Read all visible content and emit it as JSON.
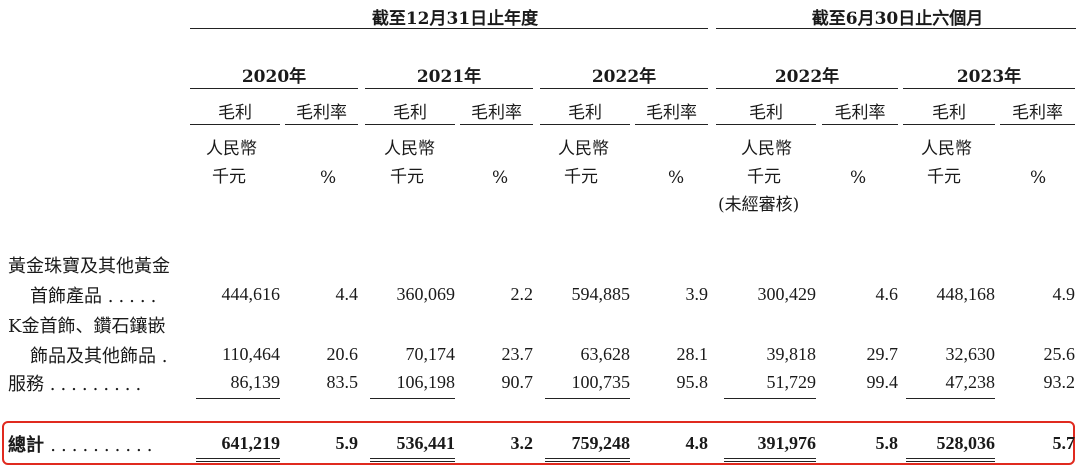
{
  "header": {
    "period_year": "截至12月31日止年度",
    "period_half": "截至6月30日止六個月",
    "years": [
      "2020年",
      "2021年",
      "2022年",
      "2022年",
      "2023年"
    ],
    "col_profit": "毛利",
    "col_margin": "毛利率",
    "unit_rmb": "人民幣",
    "unit_thousand": "千元",
    "unit_pct": "%",
    "unaudited": "(未經審核)"
  },
  "rows": [
    {
      "label_lines": [
        "黃金珠寶及其他黃金",
        "首飾產品"
      ],
      "dots": ".....",
      "values": [
        "444,616",
        "4.4",
        "360,069",
        "2.2",
        "594,885",
        "3.9",
        "300,429",
        "4.6",
        "448,168",
        "4.9"
      ]
    },
    {
      "label_lines": [
        "K金首飾、鑽石鑲嵌",
        "飾品及其他飾品"
      ],
      "dots": ".",
      "values": [
        "110,464",
        "20.6",
        "70,174",
        "23.7",
        "63,628",
        "28.1",
        "39,818",
        "29.7",
        "32,630",
        "25.6"
      ]
    },
    {
      "label_lines": [
        "服務"
      ],
      "dots": ".........",
      "values": [
        "86,139",
        "83.5",
        "106,198",
        "90.7",
        "100,735",
        "95.8",
        "51,729",
        "99.4",
        "47,238",
        "93.2"
      ]
    }
  ],
  "total": {
    "label": "總計",
    "dots": "..........",
    "values": [
      "641,219",
      "5.9",
      "536,441",
      "3.2",
      "759,248",
      "4.8",
      "391,976",
      "5.8",
      "528,036",
      "5.7"
    ]
  },
  "colors": {
    "highlight": "#e02a1f",
    "text": "#1a1a1a"
  }
}
